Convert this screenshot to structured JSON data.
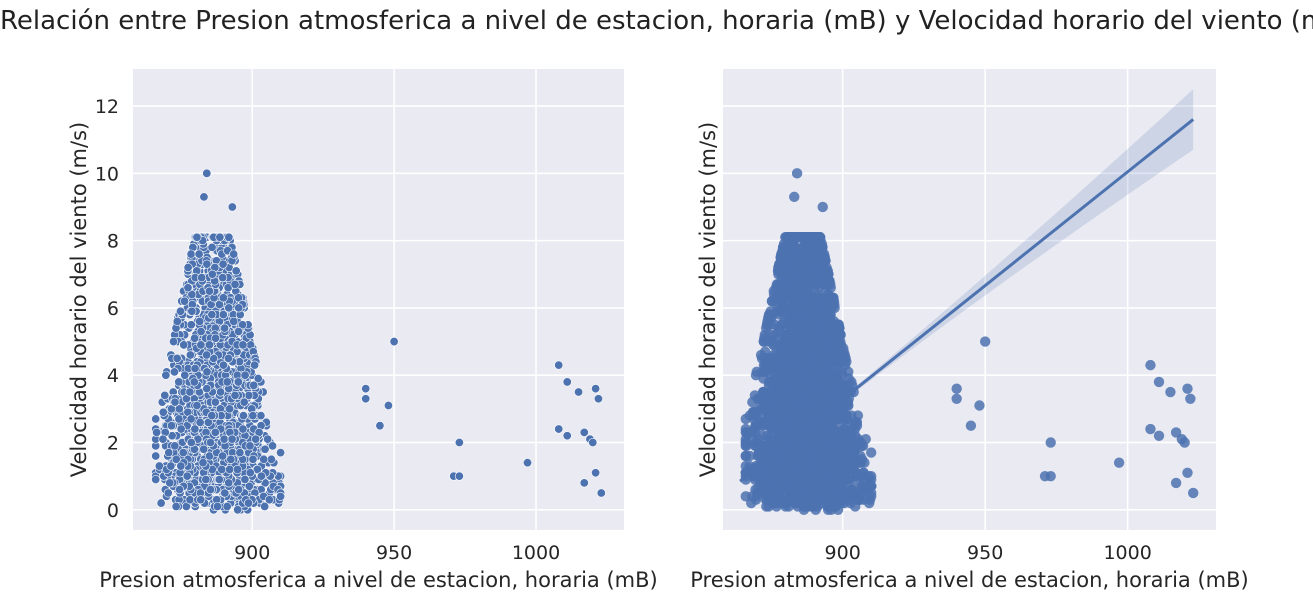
{
  "figure": {
    "title": "Relación entre Presion atmosferica a nivel de estacion, horaria (mB) y Velocidad horario del viento (m/s)"
  },
  "style": {
    "background": "#eaeaf2",
    "grid": "#ffffff",
    "marker": "#4c72b0",
    "regression_line": "#4c72b0",
    "ci_band": "#4c72b0"
  },
  "chart_data": [
    {
      "type": "scatter",
      "xlabel": "Presion atmosferica a nivel de estacion, horaria (mB)",
      "ylabel": "Velocidad horario del viento (m/s)",
      "xlim": [
        858,
        1031
      ],
      "ylim": [
        -0.6,
        13.1
      ],
      "xticks": [
        900,
        950,
        1000
      ],
      "yticks": [
        0,
        2,
        4,
        6,
        8,
        10,
        12
      ],
      "grid": true,
      "dense_cluster": {
        "x_range": [
          866,
          910
        ],
        "y_range": [
          0,
          8.1
        ]
      },
      "outliers": [
        [
          884,
          10.0
        ],
        [
          883,
          9.3
        ],
        [
          893,
          9.0
        ],
        [
          940,
          3.6
        ],
        [
          940,
          3.3
        ],
        [
          948,
          3.1
        ],
        [
          945,
          2.5
        ],
        [
          950,
          5.0
        ],
        [
          973,
          2.0
        ],
        [
          971,
          1.0
        ],
        [
          973,
          1.0
        ],
        [
          997,
          1.4
        ],
        [
          1008,
          4.3
        ],
        [
          1011,
          3.8
        ],
        [
          1015,
          3.5
        ],
        [
          1008,
          2.4
        ],
        [
          1011,
          2.2
        ],
        [
          1017,
          2.3
        ],
        [
          1019,
          2.1
        ],
        [
          1020,
          2.0
        ],
        [
          1021,
          3.6
        ],
        [
          1022,
          3.3
        ],
        [
          1021,
          1.1
        ],
        [
          1017,
          0.8
        ],
        [
          1023,
          0.5
        ]
      ]
    },
    {
      "type": "scatter",
      "xlabel": "Presion atmosferica a nivel de estacion, horaria (mB)",
      "ylabel": "Velocidad horario del viento (m/s)",
      "xlim": [
        858,
        1031
      ],
      "ylim": [
        -0.6,
        13.1
      ],
      "xticks": [
        900,
        950,
        1000
      ],
      "yticks": [
        0,
        2,
        4,
        6,
        8,
        10,
        12
      ],
      "grid": true,
      "dense_cluster": {
        "x_range": [
          866,
          910
        ],
        "y_range": [
          0,
          8.1
        ]
      },
      "outliers": [
        [
          884,
          10.0
        ],
        [
          883,
          9.3
        ],
        [
          893,
          9.0
        ],
        [
          940,
          3.6
        ],
        [
          940,
          3.3
        ],
        [
          948,
          3.1
        ],
        [
          945,
          2.5
        ],
        [
          950,
          5.0
        ],
        [
          973,
          2.0
        ],
        [
          971,
          1.0
        ],
        [
          973,
          1.0
        ],
        [
          997,
          1.4
        ],
        [
          1008,
          4.3
        ],
        [
          1011,
          3.8
        ],
        [
          1015,
          3.5
        ],
        [
          1008,
          2.4
        ],
        [
          1011,
          2.2
        ],
        [
          1017,
          2.3
        ],
        [
          1019,
          2.1
        ],
        [
          1020,
          2.0
        ],
        [
          1021,
          3.6
        ],
        [
          1022,
          3.3
        ],
        [
          1021,
          1.1
        ],
        [
          1017,
          0.8
        ],
        [
          1023,
          0.5
        ]
      ],
      "regression": {
        "x": [
          864,
          1023
        ],
        "y": [
          0.85,
          11.6
        ],
        "ci_upper_end": 12.45,
        "ci_lower_end": 10.75
      }
    }
  ]
}
